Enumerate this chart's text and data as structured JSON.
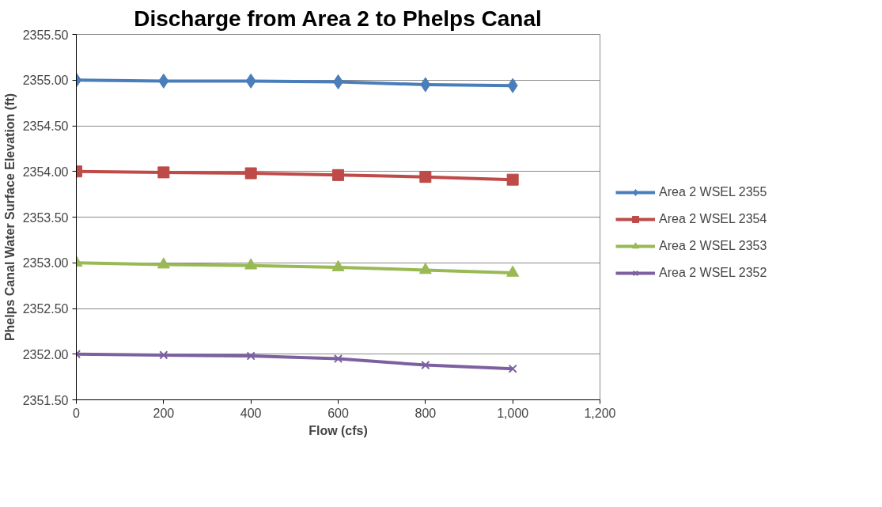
{
  "chart_data": {
    "type": "line",
    "title": "Discharge from Area 2 to Phelps Canal",
    "xlabel": "Flow (cfs)",
    "ylabel": "Phelps Canal Water Surface Elevation (ft)",
    "x": [
      0,
      200,
      400,
      600,
      800,
      1000
    ],
    "xlim": [
      0,
      1200
    ],
    "xticks": [
      0,
      200,
      400,
      600,
      800,
      {
        "value": 1000,
        "label": "1,000"
      },
      {
        "value": 1200,
        "label": "1,200"
      }
    ],
    "ylim": [
      2351.5,
      2355.5
    ],
    "yticks": [
      {
        "value": 2351.5,
        "label": "2351.50"
      },
      {
        "value": 2352,
        "label": "2352.00"
      },
      {
        "value": 2352.5,
        "label": "2352.50"
      },
      {
        "value": 2353,
        "label": "2353.00"
      },
      {
        "value": 2353.5,
        "label": "2353.50"
      },
      {
        "value": 2354,
        "label": "2354.00"
      },
      {
        "value": 2354.5,
        "label": "2354.50"
      },
      {
        "value": 2355,
        "label": "2355.00"
      },
      {
        "value": 2355.5,
        "label": "2355.50"
      }
    ],
    "grid": "y",
    "legend": "right",
    "line_style": "solid",
    "series": [
      {
        "name": "Area 2 WSEL 2355",
        "color": "#4a7ebb",
        "marker": "diamond",
        "values": [
          2355.0,
          2354.99,
          2354.99,
          2354.98,
          2354.95,
          2354.94
        ]
      },
      {
        "name": "Area 2 WSEL 2354",
        "color": "#be4b48",
        "marker": "square",
        "values": [
          2354.0,
          2353.99,
          2353.98,
          2353.96,
          2353.94,
          2353.91
        ]
      },
      {
        "name": "Area 2 WSEL 2353",
        "color": "#98b954",
        "marker": "triangle",
        "values": [
          2353.0,
          2352.98,
          2352.97,
          2352.95,
          2352.92,
          2352.89
        ]
      },
      {
        "name": "Area 2 WSEL 2352",
        "color": "#7d60a0",
        "marker": "cross",
        "values": [
          2352.0,
          2351.99,
          2351.98,
          2351.95,
          2351.88,
          2351.84
        ]
      }
    ]
  }
}
